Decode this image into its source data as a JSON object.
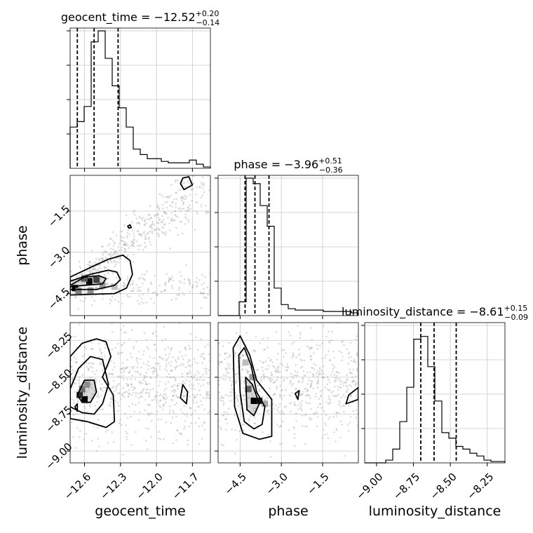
{
  "chart_data": {
    "type": "corner",
    "parameters": [
      {
        "name": "geocent_time",
        "label": "geocent_time",
        "range": [
          -12.72,
          -11.55
        ],
        "ticks": [
          -12.6,
          -12.3,
          -12.0,
          -11.7
        ],
        "tick_labels": [
          "−12.6",
          "−12.3",
          "−12.0",
          "−11.7"
        ],
        "title_main": "geocent_time = −12.52",
        "title_sup": "+0.20",
        "title_sub": "−0.14",
        "quantiles": [
          -12.66,
          -12.52,
          -12.32
        ],
        "hist_edges_start": -12.72,
        "hist_bin_width": 0.0585,
        "hist": [
          0.3,
          0.34,
          0.45,
          0.92,
          1.0,
          0.8,
          0.6,
          0.44,
          0.3,
          0.14,
          0.1,
          0.07,
          0.07,
          0.05,
          0.04,
          0.04,
          0.04,
          0.06,
          0.03,
          0.01
        ]
      },
      {
        "name": "phase",
        "label": "phase",
        "range": [
          -5.3,
          -0.2
        ],
        "ticks": [
          -4.5,
          -3.0,
          -1.5
        ],
        "tick_labels": [
          "−4.5",
          "−3.0",
          "−1.5"
        ],
        "title_main": "phase = −3.96",
        "title_sup": "+0.51",
        "title_sub": "−0.36",
        "quantiles": [
          -4.32,
          -3.96,
          -3.45
        ],
        "hist_edges_start": -5.3,
        "hist_bin_width": 0.255,
        "hist": [
          0,
          0,
          0,
          0.1,
          1.0,
          0.96,
          0.8,
          0.65,
          0.2,
          0.08,
          0.05,
          0.04,
          0.04,
          0.04,
          0.04,
          0.03,
          0.03,
          0.03,
          0.03,
          0.02
        ]
      },
      {
        "name": "luminosity_distance",
        "label": "luminosity_distance",
        "range": [
          -9.08,
          -8.13
        ],
        "ticks": [
          -9.0,
          -8.75,
          -8.5,
          -8.25
        ],
        "tick_labels": [
          "−9.00",
          "−8.75",
          "−8.50",
          "−8.25"
        ],
        "title_main": "luminosity_distance = −8.61",
        "title_sup": "+0.15",
        "title_sub": "−0.09",
        "quantiles": [
          -8.7,
          -8.61,
          -8.46
        ],
        "hist_edges_start": -9.08,
        "hist_bin_width": 0.0475,
        "hist": [
          0,
          0,
          0,
          0.02,
          0.1,
          0.3,
          0.55,
          0.9,
          0.92,
          0.7,
          0.45,
          0.22,
          0.18,
          0.12,
          0.1,
          0.07,
          0.05,
          0.02,
          0.01,
          0.01
        ]
      }
    ],
    "pairs": [
      {
        "x": "geocent_time",
        "y": "phase",
        "density": [
          [
            -12.68,
            -4.3,
            1.0
          ],
          [
            -12.56,
            -4.05,
            0.95
          ],
          [
            -12.5,
            -4.0,
            0.7
          ],
          [
            -12.6,
            -3.95,
            0.6
          ],
          [
            -12.45,
            -4.2,
            0.4
          ],
          [
            -12.35,
            -4.25,
            0.25
          ],
          [
            -12.65,
            -4.4,
            0.5
          ],
          [
            -12.55,
            -4.4,
            0.45
          ]
        ],
        "contours": [
          [
            [
              -12.72,
              -4.05
            ],
            [
              -12.55,
              -3.8
            ],
            [
              -12.4,
              -3.65
            ],
            [
              -12.33,
              -3.72
            ],
            [
              -12.3,
              -4.0
            ],
            [
              -12.35,
              -4.2
            ],
            [
              -12.5,
              -4.35
            ],
            [
              -12.72,
              -4.35
            ]
          ],
          [
            [
              -12.72,
              -4.2
            ],
            [
              -12.6,
              -3.9
            ],
            [
              -12.48,
              -3.85
            ],
            [
              -12.42,
              -3.95
            ],
            [
              -12.45,
              -4.15
            ],
            [
              -12.6,
              -4.2
            ],
            [
              -12.72,
              -4.25
            ]
          ],
          [
            [
              -12.72,
              -3.9
            ],
            [
              -12.55,
              -3.55
            ],
            [
              -12.4,
              -3.25
            ],
            [
              -12.28,
              -3.1
            ],
            [
              -12.22,
              -3.3
            ],
            [
              -12.2,
              -3.8
            ],
            [
              -12.25,
              -4.3
            ],
            [
              -12.35,
              -4.5
            ],
            [
              -12.72,
              -4.55
            ]
          ],
          [
            [
              -11.78,
              -0.3
            ],
            [
              -11.73,
              -0.25
            ],
            [
              -11.7,
              -0.55
            ],
            [
              -11.77,
              -0.72
            ],
            [
              -11.8,
              -0.5
            ]
          ],
          [
            [
              -12.24,
              -2.05
            ],
            [
              -12.22,
              -2.0
            ],
            [
              -12.21,
              -2.1
            ],
            [
              -12.23,
              -2.12
            ]
          ]
        ],
        "scatter_center": [
          -12.2,
          -3.0
        ]
      },
      {
        "x": "geocent_time",
        "y": "luminosity_distance",
        "density": [
          [
            -12.6,
            -8.65,
            1.0
          ],
          [
            -12.64,
            -8.62,
            0.8
          ],
          [
            -12.62,
            -8.58,
            0.5
          ],
          [
            -12.58,
            -8.55,
            0.35
          ]
        ],
        "contours": [
          [
            [
              -12.72,
              -8.58
            ],
            [
              -12.65,
              -8.44
            ],
            [
              -12.55,
              -8.36
            ],
            [
              -12.45,
              -8.38
            ],
            [
              -12.4,
              -8.55
            ],
            [
              -12.45,
              -8.68
            ],
            [
              -12.52,
              -8.75
            ],
            [
              -12.62,
              -8.74
            ],
            [
              -12.72,
              -8.7
            ]
          ],
          [
            [
              -12.66,
              -8.62
            ],
            [
              -12.6,
              -8.52
            ],
            [
              -12.52,
              -8.52
            ],
            [
              -12.5,
              -8.6
            ],
            [
              -12.55,
              -8.67
            ],
            [
              -12.62,
              -8.67
            ]
          ],
          [
            [
              -12.72,
              -8.36
            ],
            [
              -12.62,
              -8.27
            ],
            [
              -12.5,
              -8.24
            ],
            [
              -12.42,
              -8.26
            ],
            [
              -12.38,
              -8.36
            ],
            [
              -12.45,
              -8.5
            ],
            [
              -12.36,
              -8.62
            ],
            [
              -12.35,
              -8.8
            ],
            [
              -12.42,
              -8.84
            ],
            [
              -12.58,
              -8.8
            ],
            [
              -12.72,
              -8.78
            ]
          ],
          [
            [
              -11.78,
              -8.55
            ],
            [
              -11.74,
              -8.6
            ],
            [
              -11.75,
              -8.68
            ],
            [
              -11.8,
              -8.64
            ]
          ],
          [
            [
              -12.68,
              -8.7
            ],
            [
              -12.66,
              -8.68
            ],
            [
              -12.66,
              -8.73
            ]
          ]
        ],
        "scatter_center": [
          -12.3,
          -8.55
        ]
      },
      {
        "x": "phase",
        "y": "luminosity_distance",
        "density": [
          [
            -4.0,
            -8.66,
            1.0
          ],
          [
            -3.8,
            -8.66,
            0.9
          ],
          [
            -4.2,
            -8.58,
            0.55
          ],
          [
            -4.05,
            -8.5,
            0.4
          ],
          [
            -4.3,
            -8.4,
            0.25
          ],
          [
            -3.6,
            -8.68,
            0.35
          ]
        ],
        "contours": [
          [
            [
              -4.55,
              -8.35
            ],
            [
              -4.35,
              -8.3
            ],
            [
              -4.1,
              -8.42
            ],
            [
              -3.9,
              -8.6
            ],
            [
              -3.6,
              -8.7
            ],
            [
              -3.7,
              -8.82
            ],
            [
              -4.0,
              -8.85
            ],
            [
              -4.35,
              -8.8
            ],
            [
              -4.5,
              -8.6
            ]
          ],
          [
            [
              -4.3,
              -8.5
            ],
            [
              -4.05,
              -8.55
            ],
            [
              -3.8,
              -8.68
            ],
            [
              -4.0,
              -8.76
            ],
            [
              -4.25,
              -8.72
            ]
          ],
          [
            [
              -4.75,
              -8.3
            ],
            [
              -4.5,
              -8.22
            ],
            [
              -4.15,
              -8.35
            ],
            [
              -3.9,
              -8.52
            ],
            [
              -3.35,
              -8.65
            ],
            [
              -3.35,
              -8.9
            ],
            [
              -3.8,
              -8.92
            ],
            [
              -4.4,
              -8.88
            ],
            [
              -4.7,
              -8.7
            ]
          ],
          [
            [
              -2.5,
              -8.61
            ],
            [
              -2.35,
              -8.59
            ],
            [
              -2.4,
              -8.65
            ]
          ],
          [
            [
              -0.2,
              -8.57
            ],
            [
              -0.55,
              -8.62
            ],
            [
              -0.65,
              -8.68
            ],
            [
              -0.2,
              -8.65
            ]
          ]
        ],
        "scatter_center": [
          -2.5,
          -8.55
        ]
      }
    ],
    "grid": true
  }
}
